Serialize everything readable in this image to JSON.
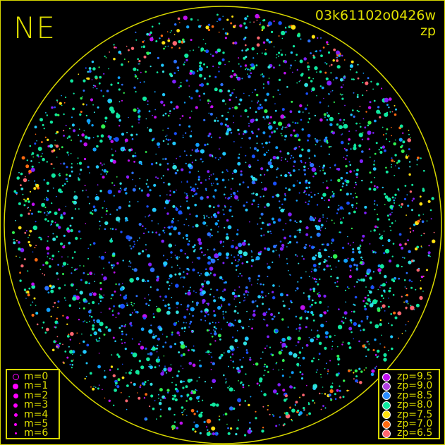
{
  "direction_label": "NE",
  "frame_id": "03k61102o0426w",
  "color_mode": "zp",
  "colors": {
    "frame": "#d8d800",
    "text": "#e0e000",
    "background": "#000000",
    "marker_m": "#ff00ff"
  },
  "magnitude_legend": [
    {
      "label": "m=0",
      "style": "ring"
    },
    {
      "label": "m=1",
      "style": "dot"
    },
    {
      "label": "m=2",
      "style": "dot"
    },
    {
      "label": "m=3",
      "style": "dot"
    },
    {
      "label": "m=4",
      "style": "dot"
    },
    {
      "label": "m=5",
      "style": "dot"
    },
    {
      "label": "m=6",
      "style": "dot"
    }
  ],
  "zp_legend": [
    {
      "label": "zp=9.5",
      "color": "#c010f0"
    },
    {
      "label": "zp=9.0",
      "color": "#b040e0"
    },
    {
      "label": "zp=8.5",
      "color": "#2a8cff"
    },
    {
      "label": "zp=8.0",
      "color": "#10e8a0"
    },
    {
      "label": "zp=7.5",
      "color": "#ffe010"
    },
    {
      "label": "zp=7.0",
      "color": "#ff6a10"
    },
    {
      "label": "zp=6.5",
      "color": "#ff6670"
    }
  ]
}
